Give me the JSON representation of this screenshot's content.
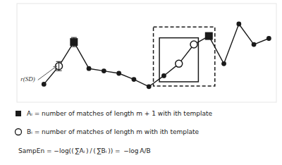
{
  "chart_data": {
    "type": "line",
    "x": [
      0,
      1,
      2,
      3,
      4,
      5,
      6,
      7,
      8,
      9,
      10,
      11,
      12,
      13,
      14,
      15
    ],
    "series": [
      {
        "type": "line",
        "color": "#1a1a1a",
        "marker": "circle",
        "values": [
          1.5,
          3.0,
          5.0,
          2.8,
          2.6,
          2.4,
          1.9,
          1.3,
          2.2,
          3.2,
          4.8,
          5.5,
          3.2,
          6.5,
          4.8,
          5.3
        ],
        "errors": [
          null,
          0.38,
          0.38,
          null,
          null,
          null,
          null,
          null,
          null,
          null,
          null,
          null,
          null,
          null,
          null,
          null
        ]
      },
      {
        "type": "scatter",
        "name": "Aᵢ = number of matches of length m + 1 with ith template",
        "color": "#1a1a1a",
        "marker": "square",
        "x": [
          2,
          11
        ],
        "values": [
          5.0,
          5.5
        ]
      },
      {
        "type": "scatter",
        "name": "Bᵢ = number of matches of length m with ith template",
        "color": "#1a1a1a",
        "marker": "open_circle",
        "x": [
          1,
          9,
          10
        ],
        "values": [
          3.0,
          3.2,
          4.8
        ]
      }
    ],
    "boxes": [
      {
        "x": [
          8,
          10
        ],
        "line_style": "solid"
      },
      {
        "x": [
          8,
          11
        ],
        "line_style": "dashed"
      }
    ],
    "annotations": [
      {
        "text": "r(SD)"
      },
      {
        "text": "SampEn = −log(( ∑Aᵢ ) / ( ∑Bᵢ )) =  −log A/B"
      }
    ],
    "xlim": [
      -1.8,
      15.5
    ],
    "ylim": [
      0.0,
      8.2
    ],
    "tick_labels": false,
    "grid": false,
    "legend": "bottom"
  }
}
